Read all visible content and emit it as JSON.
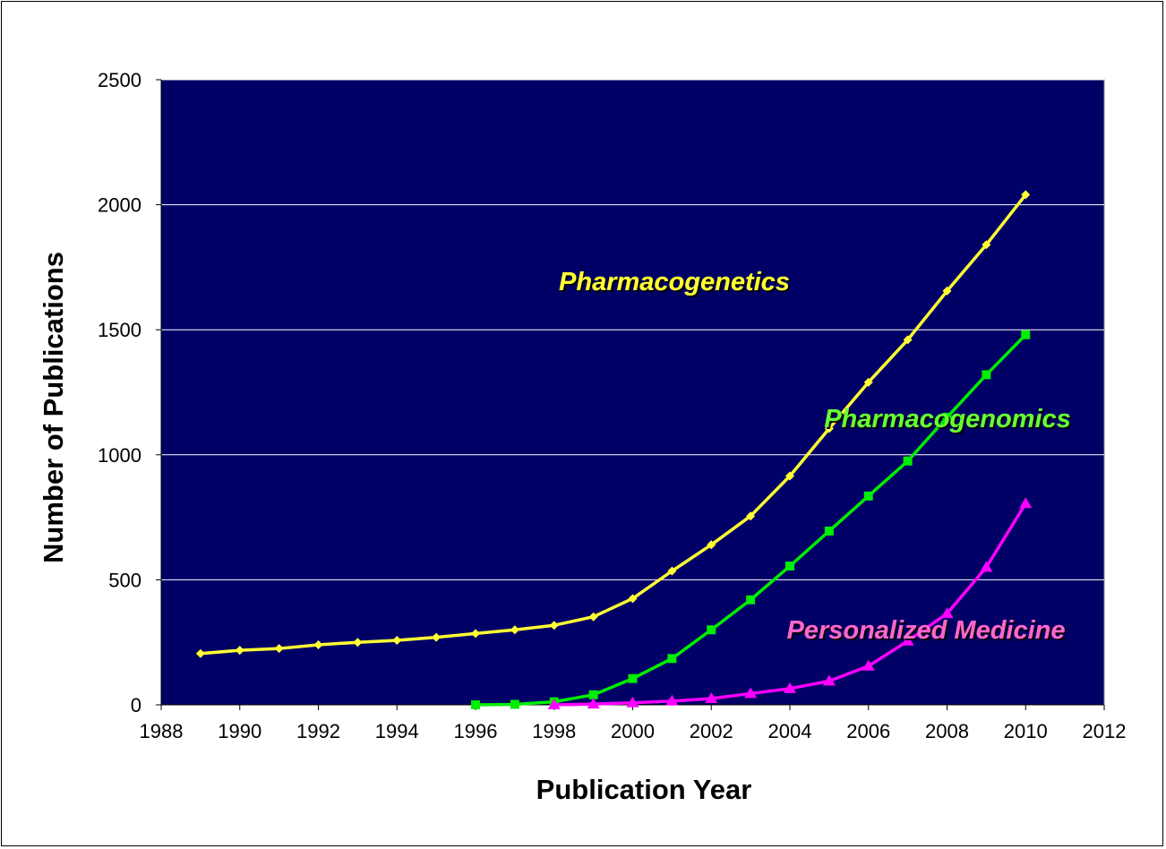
{
  "chart_data": {
    "type": "line",
    "xlabel": "Publication Year",
    "ylabel": "Number of Publications",
    "xlim": [
      1988,
      2012
    ],
    "ylim": [
      0,
      2500
    ],
    "xticks": [
      1988,
      1990,
      1992,
      1994,
      1996,
      1998,
      2000,
      2002,
      2004,
      2006,
      2008,
      2010,
      2012
    ],
    "yticks": [
      0,
      500,
      1000,
      1500,
      2000,
      2500
    ],
    "grid": "horizontal",
    "plot_background": "#000066",
    "series": [
      {
        "name": "Pharmacogenetics",
        "color": "#ffff33",
        "marker": "diamond",
        "x": [
          1989,
          1990,
          1991,
          1992,
          1993,
          1994,
          1995,
          1996,
          1997,
          1998,
          1999,
          2000,
          2001,
          2002,
          2003,
          2004,
          2005,
          2006,
          2007,
          2008,
          2009,
          2010
        ],
        "y": [
          205,
          218,
          225,
          240,
          250,
          258,
          270,
          285,
          300,
          318,
          352,
          425,
          535,
          640,
          755,
          915,
          1105,
          1290,
          1460,
          1655,
          1840,
          2040
        ]
      },
      {
        "name": "Pharmacogenomics",
        "color": "#00ee00",
        "marker": "square",
        "x": [
          1996,
          1997,
          1998,
          1999,
          2000,
          2001,
          2002,
          2003,
          2004,
          2005,
          2006,
          2007,
          2008,
          2009,
          2010
        ],
        "y": [
          0,
          2,
          12,
          40,
          105,
          185,
          300,
          420,
          555,
          695,
          835,
          975,
          1150,
          1320,
          1480
        ]
      },
      {
        "name": "Personalized Medicine",
        "color": "#ff00ff",
        "marker": "triangle",
        "x": [
          1998,
          1999,
          2000,
          2001,
          2002,
          2003,
          2004,
          2005,
          2006,
          2007,
          2008,
          2009,
          2010
        ],
        "y": [
          0,
          3,
          8,
          15,
          25,
          45,
          65,
          95,
          155,
          255,
          365,
          550,
          805
        ]
      }
    ]
  }
}
